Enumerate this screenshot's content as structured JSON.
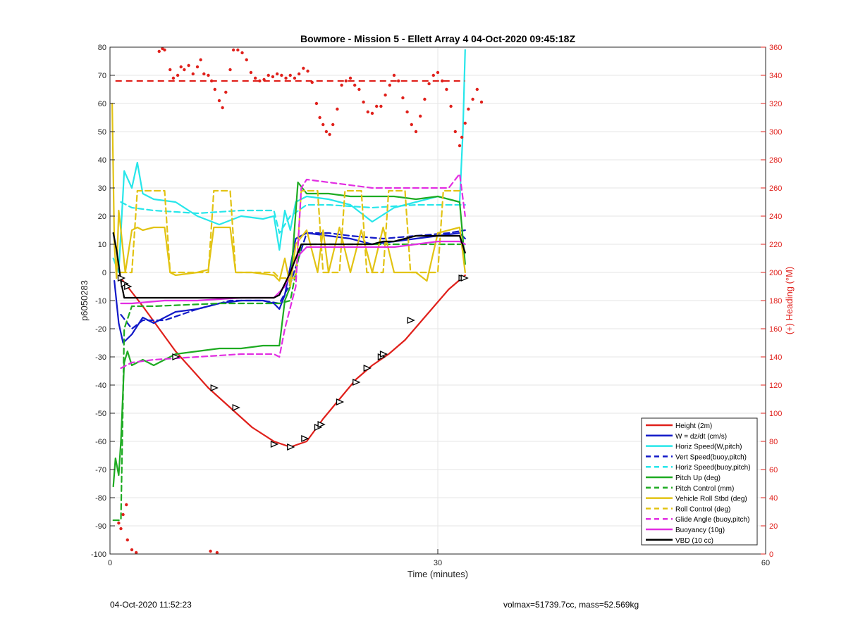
{
  "chart_data": {
    "type": "line",
    "title": "Bowmore - Mission 5 - Ellett Array 4 04-Oct-2020 09:45:18Z",
    "xlabel": "Time (minutes)",
    "ylabel_left": "p6050283",
    "ylabel_right": "(+) Heading (°M)",
    "xlim": [
      0,
      60
    ],
    "ylim_left": [
      -100,
      80
    ],
    "ylim_right": [
      0,
      360
    ],
    "xticks": [
      "0",
      "30",
      "60"
    ],
    "yticks_left": [
      "80",
      "70",
      "60",
      "50",
      "40",
      "30",
      "20",
      "10",
      "0",
      "-10",
      "-20",
      "-30",
      "-40",
      "-50",
      "-60",
      "-70",
      "-80",
      "-90",
      "-100"
    ],
    "yticks_right": [
      "360",
      "340",
      "320",
      "300",
      "280",
      "260",
      "240",
      "220",
      "200",
      "180",
      "160",
      "140",
      "120",
      "100",
      "80",
      "60",
      "40",
      "20",
      "0"
    ],
    "grid": true,
    "legend_position": "bottom-right",
    "series": [
      {
        "name": "Height (2m)",
        "color": "#e0201b",
        "style": "solid",
        "x": [
          1,
          3,
          6,
          9,
          11,
          13,
          15,
          16.5,
          18,
          19.5,
          21,
          22.5,
          24,
          25.5,
          27,
          29,
          31,
          32.5
        ],
        "y": [
          -2,
          -12,
          -28,
          -41,
          -48,
          -55,
          -60,
          -62,
          -60,
          -52,
          -45,
          -38,
          -33,
          -29,
          -24,
          -15,
          -6,
          -1
        ]
      },
      {
        "name": "W = dz/dt (cm/s)",
        "color": "#1219c8",
        "style": "solid",
        "x": [
          0.4,
          0.8,
          1.2,
          2,
          3,
          4,
          6,
          8,
          10,
          12,
          14,
          15,
          15.5,
          16,
          17,
          18,
          20,
          22,
          24,
          26,
          28,
          30,
          32,
          32.5
        ],
        "y": [
          -3,
          -18,
          -25,
          -22,
          -16,
          -18,
          -14,
          -13,
          -11,
          -10,
          -10,
          -11,
          -13,
          -8,
          12,
          14,
          13,
          12,
          10,
          11,
          12,
          13,
          14,
          12
        ]
      },
      {
        "name": "Horiz Speed(W,pitch)",
        "color": "#27e6ea",
        "style": "solid",
        "x": [
          0.3,
          0.8,
          1.3,
          2,
          2.5,
          3,
          4,
          6,
          8,
          10,
          12,
          14,
          15,
          15.5,
          16,
          16.5,
          17,
          18,
          20,
          22,
          24,
          26,
          28,
          30,
          31,
          32,
          32.3,
          32.5
        ],
        "y": [
          5,
          0,
          36,
          30,
          39,
          28,
          26,
          25,
          20,
          17,
          20,
          19,
          20,
          8,
          22,
          15,
          25,
          27,
          26,
          24,
          18,
          23,
          25,
          27,
          26,
          25,
          50,
          79
        ]
      },
      {
        "name": "Vert Speed(buoy,pitch)",
        "color": "#1219c8",
        "style": "dashed",
        "x": [
          1,
          2,
          3,
          5,
          8,
          11,
          14,
          15.5,
          16.5,
          18,
          20,
          22,
          25,
          28,
          31,
          32.5
        ],
        "y": [
          -15,
          -20,
          -17,
          -17,
          -13,
          -10,
          -10,
          -11,
          -4,
          14,
          14,
          13,
          12,
          13,
          14,
          15
        ]
      },
      {
        "name": "Horiz Speed(buoy,pitch)",
        "color": "#27e6ea",
        "style": "dashed",
        "x": [
          1,
          2,
          4,
          8,
          12,
          15,
          15.5,
          16.5,
          18,
          20,
          24,
          28,
          31,
          32.5
        ],
        "y": [
          25,
          23,
          22,
          21,
          22,
          22,
          14,
          20,
          24,
          24,
          23,
          24,
          24,
          24
        ]
      },
      {
        "name": "Pitch Up (deg)",
        "color": "#1eab22",
        "style": "solid",
        "x": [
          0.3,
          0.5,
          0.8,
          1,
          1.3,
          1.6,
          2,
          3,
          4,
          6,
          8,
          10,
          12,
          14,
          15.5,
          16,
          16.5,
          17.2,
          18,
          20,
          22,
          24,
          26,
          28,
          30,
          32,
          32.5
        ],
        "y": [
          -76,
          -66,
          -72,
          -60,
          -32,
          -28,
          -33,
          -31,
          -33,
          -29,
          -28,
          -27,
          -27,
          -26,
          -26,
          -10,
          -5,
          32,
          28,
          28,
          27,
          27,
          27,
          26,
          27,
          25,
          3
        ]
      },
      {
        "name": "Pitch Control (mm)",
        "color": "#1eab22",
        "style": "dashed",
        "x": [
          0.3,
          1,
          1.3,
          2,
          4,
          10,
          15.5,
          16.5,
          17.5,
          18,
          20,
          25,
          30,
          32.5
        ],
        "y": [
          -88,
          -88,
          -20,
          -12,
          -12,
          -11,
          -11,
          -10,
          10,
          10,
          10,
          10,
          10,
          10
        ]
      },
      {
        "name": "Vehicle Roll Stbd (deg)",
        "color": "#e2c313",
        "style": "solid",
        "x": [
          0.2,
          0.4,
          0.6,
          0.8,
          1,
          1.4,
          2,
          2.5,
          3,
          4,
          5,
          5.5,
          6,
          8,
          9,
          9.5,
          11,
          11.5,
          13,
          15,
          15.5,
          16,
          16.5,
          17,
          18,
          19,
          19.5,
          20,
          21,
          22,
          23,
          24,
          25,
          26,
          27,
          28,
          29,
          30,
          31,
          32,
          32.5
        ],
        "y": [
          60,
          10,
          -2,
          22,
          15,
          0,
          15,
          16,
          15,
          16,
          16,
          0,
          -1,
          0,
          1,
          16,
          16,
          0,
          0,
          -1,
          -3,
          5,
          -5,
          10,
          15,
          0,
          15,
          0,
          16,
          0,
          15,
          0,
          16,
          0,
          0,
          0,
          -3,
          14,
          15,
          16,
          0
        ]
      },
      {
        "name": "Roll Control (deg)",
        "color": "#e2c313",
        "style": "dashed",
        "x": [
          1,
          2,
          2.5,
          5,
          5.5,
          9,
          9.5,
          11,
          11.5,
          15,
          15.5,
          17,
          17.5,
          19,
          19.5,
          21,
          21.5,
          23,
          23.5,
          25,
          25.5,
          27,
          27.5,
          30,
          30.5,
          32
        ],
        "y": [
          0,
          0,
          29,
          29,
          0,
          0,
          29,
          29,
          0,
          0,
          -2,
          -2,
          29,
          29,
          0,
          0,
          29,
          29,
          0,
          0,
          29,
          29,
          0,
          0,
          29,
          29
        ]
      },
      {
        "name": "Glide Angle (buoy,pitch)",
        "color": "#e22ee2",
        "style": "dashed",
        "x": [
          1,
          2,
          4,
          8,
          12,
          15,
          15.5,
          16,
          17,
          17.5,
          18,
          20,
          24,
          28,
          31,
          32,
          32.5
        ],
        "y": [
          -34,
          -32,
          -31,
          -30,
          -29,
          -29,
          -30,
          -20,
          -5,
          30,
          33,
          32,
          30,
          30,
          30,
          35,
          20
        ]
      },
      {
        "name": "Buoyancy (10g)",
        "color": "#e22ee2",
        "style": "solid",
        "x": [
          1,
          2,
          5,
          8,
          12,
          15,
          16,
          17,
          18,
          20,
          24,
          26,
          28,
          30,
          32,
          32.5
        ],
        "y": [
          -11,
          -11,
          -10,
          -10,
          -9,
          -9,
          -5,
          5,
          9,
          9,
          9,
          9,
          10,
          11,
          11,
          10
        ]
      },
      {
        "name": "VBD (10 cc)",
        "color": "#000000",
        "style": "solid",
        "x": [
          0.3,
          0.6,
          1,
          1.3,
          2,
          5,
          10,
          15,
          15.5,
          16.5,
          17,
          17.5,
          18,
          20,
          22,
          24,
          25,
          26,
          27,
          28,
          30,
          32,
          32.5
        ],
        "y": [
          14,
          8,
          -3,
          -9,
          -9,
          -9,
          -9,
          -9,
          -8,
          0,
          5,
          10,
          10,
          10,
          10,
          10,
          11,
          11,
          12,
          13,
          13,
          13,
          7
        ]
      }
    ],
    "heading_reference": {
      "value": 336,
      "color": "#e0201b",
      "style": "dashed",
      "x": [
        0.5,
        32.5
      ]
    },
    "heading_points": {
      "color": "#e0201b",
      "points": [
        [
          1.2,
          28
        ],
        [
          1.5,
          35
        ],
        [
          0.8,
          22
        ],
        [
          1.0,
          18
        ],
        [
          1.6,
          10
        ],
        [
          2.0,
          3
        ],
        [
          2.4,
          1
        ],
        [
          9.2,
          2
        ],
        [
          9.8,
          1
        ],
        [
          4.5,
          357
        ],
        [
          4.8,
          359
        ],
        [
          5.0,
          358
        ],
        [
          5.5,
          344
        ],
        [
          5.8,
          338
        ],
        [
          6.2,
          340
        ],
        [
          6.5,
          346
        ],
        [
          6.8,
          344
        ],
        [
          7.2,
          347
        ],
        [
          7.6,
          341
        ],
        [
          8.0,
          346
        ],
        [
          8.3,
          351
        ],
        [
          8.6,
          341
        ],
        [
          9.0,
          340
        ],
        [
          9.3,
          336
        ],
        [
          9.6,
          330
        ],
        [
          10.0,
          322
        ],
        [
          10.3,
          317
        ],
        [
          10.6,
          328
        ],
        [
          11.0,
          344
        ],
        [
          11.3,
          358
        ],
        [
          11.7,
          358
        ],
        [
          12.1,
          356
        ],
        [
          12.5,
          351
        ],
        [
          12.9,
          342
        ],
        [
          13.3,
          338
        ],
        [
          13.7,
          336
        ],
        [
          14.1,
          337
        ],
        [
          14.5,
          340
        ],
        [
          14.9,
          339
        ],
        [
          15.3,
          341
        ],
        [
          15.7,
          340
        ],
        [
          16.1,
          338
        ],
        [
          16.5,
          340
        ],
        [
          16.9,
          338
        ],
        [
          17.3,
          341
        ],
        [
          17.7,
          345
        ],
        [
          18.1,
          343
        ],
        [
          18.5,
          335
        ],
        [
          18.9,
          320
        ],
        [
          19.2,
          310
        ],
        [
          19.5,
          305
        ],
        [
          19.8,
          300
        ],
        [
          20.1,
          298
        ],
        [
          20.4,
          305
        ],
        [
          20.8,
          316
        ],
        [
          21.2,
          333
        ],
        [
          21.6,
          336
        ],
        [
          22.0,
          338
        ],
        [
          22.4,
          333
        ],
        [
          22.8,
          330
        ],
        [
          23.2,
          321
        ],
        [
          23.6,
          314
        ],
        [
          24.0,
          313
        ],
        [
          24.4,
          318
        ],
        [
          24.8,
          318
        ],
        [
          25.2,
          326
        ],
        [
          25.6,
          333
        ],
        [
          26.0,
          340
        ],
        [
          26.4,
          336
        ],
        [
          26.8,
          324
        ],
        [
          27.2,
          314
        ],
        [
          27.6,
          305
        ],
        [
          28.0,
          300
        ],
        [
          28.4,
          311
        ],
        [
          28.8,
          323
        ],
        [
          29.2,
          334
        ],
        [
          29.6,
          340
        ],
        [
          30.0,
          342
        ],
        [
          30.4,
          336
        ],
        [
          30.8,
          330
        ],
        [
          31.2,
          318
        ],
        [
          31.6,
          300
        ],
        [
          32.0,
          290
        ],
        [
          32.2,
          296
        ],
        [
          32.5,
          306
        ],
        [
          32.8,
          316
        ],
        [
          33.2,
          323
        ],
        [
          33.6,
          330
        ],
        [
          34.0,
          321
        ]
      ]
    },
    "height_markers": [
      [
        1.0,
        -2
      ],
      [
        1.3,
        -4
      ],
      [
        1.6,
        -5
      ],
      [
        6.0,
        -30
      ],
      [
        9.5,
        -41
      ],
      [
        11.5,
        -48
      ],
      [
        15.0,
        -61
      ],
      [
        16.5,
        -62
      ],
      [
        17.8,
        -59
      ],
      [
        19.0,
        -55
      ],
      [
        19.3,
        -54
      ],
      [
        21.0,
        -46
      ],
      [
        22.5,
        -39
      ],
      [
        23.5,
        -34
      ],
      [
        24.8,
        -30
      ],
      [
        25.0,
        -29
      ],
      [
        27.5,
        -17
      ],
      [
        32.2,
        -2
      ],
      [
        32.4,
        -2
      ]
    ]
  },
  "legend": [
    {
      "label": "Height (2m)",
      "color": "#e0201b",
      "dash": false
    },
    {
      "label": "W = dz/dt (cm/s)",
      "color": "#1219c8",
      "dash": false
    },
    {
      "label": "Horiz Speed(W,pitch)",
      "color": "#27e6ea",
      "dash": false
    },
    {
      "label": "Vert Speed(buoy,pitch)",
      "color": "#1219c8",
      "dash": true
    },
    {
      "label": "Horiz Speed(buoy,pitch)",
      "color": "#27e6ea",
      "dash": true
    },
    {
      "label": "Pitch Up (deg)",
      "color": "#1eab22",
      "dash": false
    },
    {
      "label": "Pitch Control (mm)",
      "color": "#1eab22",
      "dash": true
    },
    {
      "label": "Vehicle Roll Stbd (deg)",
      "color": "#e2c313",
      "dash": false
    },
    {
      "label": "Roll Control (deg)",
      "color": "#e2c313",
      "dash": true
    },
    {
      "label": "Glide Angle (buoy,pitch)",
      "color": "#e22ee2",
      "dash": true
    },
    {
      "label": "Buoyancy (10g)",
      "color": "#e22ee2",
      "dash": false
    },
    {
      "label": "VBD (10 cc)",
      "color": "#000000",
      "dash": false
    }
  ],
  "footer": {
    "timestamp": "04-Oct-2020 11:52:23",
    "vol_mass": "volmax=51739.7cc, mass=52.569kg"
  }
}
